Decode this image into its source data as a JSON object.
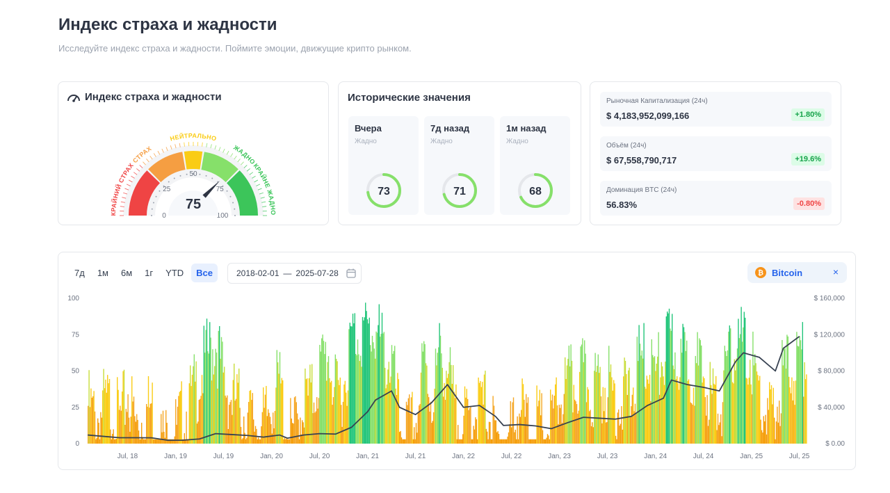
{
  "page": {
    "title": "Индекс страха и жадности",
    "subtitle": "Исследуйте индекс страха и жадности. Поймите эмоции, движущие крипто рынком."
  },
  "gauge": {
    "title": "Индекс страха и жадности",
    "value": 75,
    "value_text": "75",
    "zone_labels": [
      "КРАЙНИЙ СТРАХ",
      "СТРАХ",
      "НЕЙТРАЛЬНО",
      "ЖАДНО",
      "КРАЙНЕ ЖАДНО"
    ],
    "scale_labels": [
      "0",
      "25",
      "50",
      "75",
      "100"
    ],
    "zone_colors": [
      "#ef4444",
      "#f59e42",
      "#facc15",
      "#86e06a",
      "#3cc55a"
    ]
  },
  "historical": {
    "title": "Исторические значения",
    "items": [
      {
        "label": "Вчера",
        "sub": "Жадно",
        "value": 73,
        "value_text": "73"
      },
      {
        "label": "7д назад",
        "sub": "Жадно",
        "value": 71,
        "value_text": "71"
      },
      {
        "label": "1м назад",
        "sub": "Жадно",
        "value": 68,
        "value_text": "68"
      }
    ]
  },
  "market": [
    {
      "label": "Рыночная Капитализация (24ч)",
      "value": "$ 4,183,952,099,166",
      "change": "+1.80%",
      "direction": "up"
    },
    {
      "label": "Объём (24ч)",
      "value": "$ 67,558,790,717",
      "change": "+19.6%",
      "direction": "up"
    },
    {
      "label": "Доминация BTC (24ч)",
      "value": "56.83%",
      "change": "-0.80%",
      "direction": "down"
    }
  ],
  "controls": {
    "ranges": [
      "7д",
      "1м",
      "6м",
      "1г",
      "YTD",
      "Все"
    ],
    "active_range": "Все",
    "date_from": "2018-02-01",
    "date_sep": "—",
    "date_to": "2025-07-28",
    "asset": "Bitcoin",
    "asset_close": "×",
    "bitcoin_glyph": "₿"
  },
  "chart_data": {
    "type": "bar",
    "x_tick_labels": [
      "Jul, 18",
      "Jan, 19",
      "Jul, 19",
      "Jan, 20",
      "Jul, 20",
      "Jan, 21",
      "Jul, 21",
      "Jan, 22",
      "Jul, 22",
      "Jan, 23",
      "Jul, 23",
      "Jan, 24",
      "Jul, 24",
      "Jan, 25",
      "Jul, 25"
    ],
    "y_left_ticks": [
      "0",
      "25",
      "50",
      "75",
      "100"
    ],
    "y_left_range": [
      0,
      100
    ],
    "y_right_ticks": [
      "$ 0.00",
      "$ 40,000",
      "$ 80,000",
      "$ 120,000",
      "$ 160,000"
    ],
    "y_right_range": [
      0,
      160000
    ],
    "x_range": [
      "2018-02-01",
      "2025-07-28"
    ],
    "series": [
      {
        "name": "Индекс страха и жадности",
        "type": "bar",
        "points": [
          [
            "2018-02",
            40
          ],
          [
            "2018-03",
            30
          ],
          [
            "2018-04",
            40
          ],
          [
            "2018-05",
            40
          ],
          [
            "2018-06",
            28
          ],
          [
            "2018-07",
            50
          ],
          [
            "2018-08",
            25
          ],
          [
            "2018-09",
            35
          ],
          [
            "2018-10",
            40
          ],
          [
            "2018-11",
            18
          ],
          [
            "2018-12",
            16
          ],
          [
            "2019-01",
            22
          ],
          [
            "2019-02",
            35
          ],
          [
            "2019-03",
            45
          ],
          [
            "2019-04",
            60
          ],
          [
            "2019-05",
            75
          ],
          [
            "2019-06",
            85
          ],
          [
            "2019-07",
            55
          ],
          [
            "2019-08",
            45
          ],
          [
            "2019-09",
            40
          ],
          [
            "2019-10",
            30
          ],
          [
            "2019-11",
            30
          ],
          [
            "2019-12",
            25
          ],
          [
            "2020-01",
            45
          ],
          [
            "2020-02",
            55
          ],
          [
            "2020-03",
            15
          ],
          [
            "2020-04",
            25
          ],
          [
            "2020-05",
            45
          ],
          [
            "2020-06",
            45
          ],
          [
            "2020-07",
            65
          ],
          [
            "2020-08",
            78
          ],
          [
            "2020-09",
            45
          ],
          [
            "2020-10",
            55
          ],
          [
            "2020-11",
            88
          ],
          [
            "2020-12",
            92
          ],
          [
            "2021-01",
            90
          ],
          [
            "2021-02",
            92
          ],
          [
            "2021-03",
            75
          ],
          [
            "2021-04",
            70
          ],
          [
            "2021-05",
            25
          ],
          [
            "2021-06",
            22
          ],
          [
            "2021-07",
            28
          ],
          [
            "2021-08",
            70
          ],
          [
            "2021-09",
            45
          ],
          [
            "2021-10",
            75
          ],
          [
            "2021-11",
            65
          ],
          [
            "2021-12",
            30
          ],
          [
            "2022-01",
            25
          ],
          [
            "2022-02",
            35
          ],
          [
            "2022-03",
            40
          ],
          [
            "2022-04",
            40
          ],
          [
            "2022-05",
            12
          ],
          [
            "2022-06",
            10
          ],
          [
            "2022-07",
            25
          ],
          [
            "2022-08",
            40
          ],
          [
            "2022-09",
            25
          ],
          [
            "2022-10",
            28
          ],
          [
            "2022-11",
            22
          ],
          [
            "2022-12",
            28
          ],
          [
            "2023-01",
            45
          ],
          [
            "2023-02",
            55
          ],
          [
            "2023-03",
            55
          ],
          [
            "2023-04",
            60
          ],
          [
            "2023-05",
            50
          ],
          [
            "2023-06",
            55
          ],
          [
            "2023-07",
            55
          ],
          [
            "2023-08",
            45
          ],
          [
            "2023-09",
            45
          ],
          [
            "2023-10",
            50
          ],
          [
            "2023-11",
            70
          ],
          [
            "2023-12",
            72
          ],
          [
            "2024-01",
            60
          ],
          [
            "2024-02",
            75
          ],
          [
            "2024-03",
            85
          ],
          [
            "2024-04",
            70
          ],
          [
            "2024-05",
            72
          ],
          [
            "2024-06",
            65
          ],
          [
            "2024-07",
            60
          ],
          [
            "2024-08",
            45
          ],
          [
            "2024-09",
            40
          ],
          [
            "2024-10",
            65
          ],
          [
            "2024-11",
            85
          ],
          [
            "2024-12",
            80
          ],
          [
            "2025-01",
            70
          ],
          [
            "2025-02",
            45
          ],
          [
            "2025-03",
            30
          ],
          [
            "2025-04",
            35
          ],
          [
            "2025-05",
            65
          ],
          [
            "2025-06",
            65
          ],
          [
            "2025-07",
            72
          ]
        ]
      },
      {
        "name": "Bitcoin",
        "type": "line",
        "color": "#374151",
        "points": [
          [
            "2018-02",
            9500
          ],
          [
            "2018-04",
            8000
          ],
          [
            "2018-06",
            6500
          ],
          [
            "2018-08",
            6500
          ],
          [
            "2018-10",
            6400
          ],
          [
            "2018-12",
            3700
          ],
          [
            "2019-02",
            3800
          ],
          [
            "2019-04",
            5200
          ],
          [
            "2019-06",
            11000
          ],
          [
            "2019-08",
            10000
          ],
          [
            "2019-10",
            9000
          ],
          [
            "2019-12",
            7200
          ],
          [
            "2020-02",
            9500
          ],
          [
            "2020-03",
            6000
          ],
          [
            "2020-05",
            9500
          ],
          [
            "2020-07",
            11000
          ],
          [
            "2020-09",
            10500
          ],
          [
            "2020-11",
            18000
          ],
          [
            "2021-01",
            35000
          ],
          [
            "2021-02",
            48000
          ],
          [
            "2021-04",
            58000
          ],
          [
            "2021-05",
            40000
          ],
          [
            "2021-07",
            32000
          ],
          [
            "2021-09",
            45000
          ],
          [
            "2021-11",
            65000
          ],
          [
            "2022-01",
            40000
          ],
          [
            "2022-03",
            42000
          ],
          [
            "2022-05",
            30000
          ],
          [
            "2022-06",
            20000
          ],
          [
            "2022-08",
            21000
          ],
          [
            "2022-10",
            19500
          ],
          [
            "2022-12",
            16500
          ],
          [
            "2023-02",
            23000
          ],
          [
            "2023-04",
            29000
          ],
          [
            "2023-06",
            28000
          ],
          [
            "2023-08",
            27000
          ],
          [
            "2023-10",
            30000
          ],
          [
            "2023-12",
            42000
          ],
          [
            "2024-02",
            50000
          ],
          [
            "2024-03",
            70000
          ],
          [
            "2024-05",
            65000
          ],
          [
            "2024-07",
            62000
          ],
          [
            "2024-09",
            58000
          ],
          [
            "2024-11",
            90000
          ],
          [
            "2024-12",
            100000
          ],
          [
            "2025-02",
            95000
          ],
          [
            "2025-04",
            80000
          ],
          [
            "2025-05",
            105000
          ],
          [
            "2025-07",
            118000
          ]
        ]
      }
    ],
    "grid": false,
    "legend": "none"
  }
}
